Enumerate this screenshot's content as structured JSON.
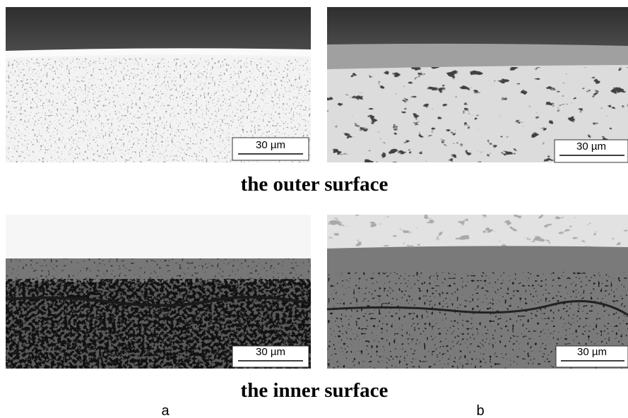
{
  "rows": [
    {
      "panels": [
        {
          "scale_bar": "30 µm"
        },
        {
          "scale_bar": "30 µm"
        }
      ],
      "caption": "the outer surface"
    },
    {
      "panels": [
        {
          "scale_bar": "30 µm"
        },
        {
          "scale_bar": "30 µm"
        }
      ],
      "caption": "the inner surface"
    }
  ],
  "column_labels": [
    "a",
    "b"
  ]
}
